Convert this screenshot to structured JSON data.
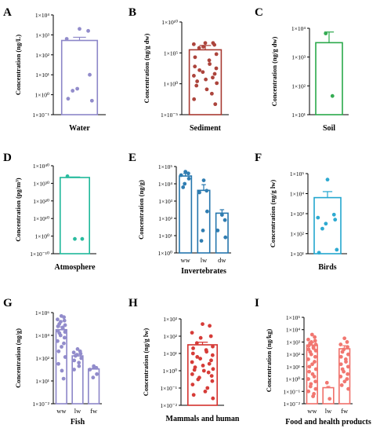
{
  "chart_data": [
    {
      "panel_label": "A",
      "type": "bar",
      "log_scale": true,
      "ylim_exp": [
        -1,
        4
      ],
      "tick_labels": [
        "1×10⁻¹",
        "1×10⁰",
        "1×10¹",
        "1×10²",
        "1×10³",
        "1×10⁴"
      ],
      "ylabel": "Concentration (ng/L)",
      "xlabel": "Water",
      "color": "#8c86c8",
      "bars": [
        {
          "value_exp": 2.72,
          "err_exp": 2.88
        }
      ],
      "points": [
        [
          3.3,
          3.2,
          2.8,
          1.0,
          0.3,
          0.2,
          -0.3,
          -0.2
        ]
      ]
    },
    {
      "panel_label": "B",
      "type": "bar",
      "log_scale": true,
      "ylim_exp": [
        -5,
        10
      ],
      "tick_labels": [
        "1×10⁻⁵",
        "1×10⁰",
        "1×10⁵",
        "1×10¹⁰"
      ],
      "ylabel": "Concentration (ng/g dw)",
      "xlabel": "Sediment",
      "color": "#a83a32",
      "bars": [
        {
          "value_exp": 5.5,
          "err_exp": 6.2
        }
      ],
      "points": [
        [
          6.6,
          6.6,
          6.4,
          6.3,
          6.0,
          5.8,
          4.8,
          4.3,
          3.8,
          3.2,
          2.8,
          2.5,
          2.2,
          1.9,
          1.6,
          1.3,
          1.0,
          0.7,
          0.4,
          0.1,
          -0.3,
          -0.9,
          -1.6,
          -2.5,
          -3.3
        ]
      ]
    },
    {
      "panel_label": "C",
      "type": "bar",
      "log_scale": true,
      "ylim_exp": [
        1,
        4
      ],
      "tick_labels": [
        "1×10¹",
        "1×10²",
        "1×10³",
        "1×10⁴"
      ],
      "ylabel": "Concentration (ng/g dw)",
      "xlabel": "Soil",
      "color": "#2aa84a",
      "bars": [
        {
          "value_exp": 3.5,
          "err_exp": 3.87
        }
      ],
      "points": [
        [
          3.82,
          1.65
        ]
      ]
    },
    {
      "panel_label": "D",
      "type": "bar",
      "log_scale": true,
      "ylim_exp": [
        -10,
        40
      ],
      "tick_labels": [
        "1×10⁻¹⁰",
        "1×10⁰",
        "1×10¹⁰",
        "1×10²⁰",
        "1×10³⁰",
        "1×10⁴⁰"
      ],
      "ylabel": "Concentration (pg/m³)",
      "xlabel": "Atmosphere",
      "color": "#1fb89a",
      "bars": [
        {
          "value_exp": 33.3,
          "err_exp": 33.6
        }
      ],
      "points": [
        [
          34.0,
          -1.6,
          -1.6
        ]
      ]
    },
    {
      "panel_label": "E",
      "type": "bar",
      "log_scale": true,
      "ylim_exp": [
        0,
        5
      ],
      "tick_labels": [
        "1×10⁰",
        "1×10¹",
        "1×10²",
        "1×10³",
        "1×10⁴",
        "1×10⁵"
      ],
      "ylabel": "Concentration (ng/g)",
      "xlabel": "Invertebrates",
      "categories": [
        "ww",
        "lw",
        "dw"
      ],
      "color": "#2576ad",
      "bars": [
        {
          "value_exp": 4.45,
          "err_exp": 4.6
        },
        {
          "value_exp": 3.62,
          "err_exp": 3.95
        },
        {
          "value_exp": 2.3,
          "err_exp": 2.5
        }
      ],
      "points": [
        [
          4.7,
          4.6,
          4.5,
          4.3,
          4.0,
          3.8
        ],
        [
          4.2,
          3.6,
          3.5,
          2.4,
          1.3,
          0.7
        ],
        [
          2.2,
          1.9,
          1.3,
          0.9
        ]
      ]
    },
    {
      "panel_label": "F",
      "type": "bar",
      "log_scale": true,
      "ylim_exp": [
        1,
        5
      ],
      "tick_labels": [
        "1×10¹",
        "1×10²",
        "1×10³",
        "1×10⁴",
        "1×10⁵"
      ],
      "ylabel": "Concentration (ng/g lw)",
      "xlabel": "Birds",
      "color": "#23a6cf",
      "bars": [
        {
          "value_exp": 3.8,
          "err_exp": 4.1
        }
      ],
      "points": [
        [
          4.7,
          2.95,
          2.8,
          2.7,
          2.5,
          2.25,
          1.2,
          1.05
        ]
      ]
    },
    {
      "panel_label": "G",
      "type": "bar",
      "log_scale": true,
      "ylim_exp": [
        -2,
        6
      ],
      "tick_labels": [
        "1×10⁻²",
        "1×10¹",
        "1×10²",
        "1×10⁴",
        "1×10⁶"
      ],
      "ylabel": "Concentration (ng/g)",
      "xlabel": "Fish",
      "categories": [
        "ww",
        "lw",
        "fw"
      ],
      "color": "#8c86c8",
      "bars": [
        {
          "value_exp": 4.5,
          "err_exp": 4.75
        },
        {
          "value_exp": 2.2,
          "err_exp": 2.35
        },
        {
          "value_exp": 1.05,
          "err_exp": 1.15
        }
      ],
      "points": [
        [
          5.7,
          5.6,
          5.4,
          5.3,
          5.2,
          5.0,
          4.9,
          4.8,
          4.7,
          4.6,
          4.4,
          4.3,
          4.2,
          4.0,
          3.8,
          3.5,
          3.3,
          3.0,
          2.6,
          2.1,
          1.5,
          0.9,
          0.2
        ],
        [
          2.8,
          2.6,
          2.5,
          2.4,
          2.3,
          2.2,
          2.0,
          1.8,
          1.6,
          1.3,
          1.0
        ],
        [
          1.3,
          1.15,
          1.0,
          0.6,
          0.3
        ]
      ]
    },
    {
      "panel_label": "H",
      "type": "bar",
      "log_scale": true,
      "ylim_exp": [
        -2,
        3
      ],
      "tick_labels": [
        "1×10⁻²",
        "1×10⁻¹",
        "1×10⁰",
        "1×10¹",
        "1×10²",
        "1×10³"
      ],
      "ylabel": "Concentration (ng/g lw)",
      "xlabel": "Mammals and human",
      "color": "#d4322e",
      "bars": [
        {
          "value_exp": 1.5,
          "err_exp": 1.65
        }
      ],
      "points": [
        [
          2.7,
          2.6,
          2.2,
          2.0,
          1.9,
          1.6,
          1.4,
          1.3,
          1.2,
          1.1,
          1.0,
          0.9,
          0.8,
          0.7,
          0.6,
          0.5,
          0.4,
          0.3,
          0.2,
          0.1,
          0.05,
          0.0,
          -0.1,
          -0.2,
          -0.3,
          -0.4,
          -0.5,
          -0.6,
          -0.8,
          -1.0,
          -1.2,
          -1.4,
          -1.6
        ]
      ]
    },
    {
      "panel_label": "I",
      "type": "bar",
      "log_scale": true,
      "ylim_exp": [
        -2,
        5
      ],
      "tick_labels": [
        "1×10⁻²",
        "1×10⁻¹",
        "1×10⁰",
        "1×10¹",
        "1×10²",
        "1×10³",
        "1×10⁴",
        "1×10⁵"
      ],
      "ylabel": "Concentration (ng/kg)",
      "xlabel": "Food and health products",
      "categories": [
        "ww",
        "lw",
        "fw"
      ],
      "color": "#f0706a",
      "bars": [
        {
          "value_exp": 2.75,
          "err_exp": 2.95
        },
        {
          "value_exp": -0.7,
          "err_exp": -0.6
        },
        {
          "value_exp": 2.45,
          "err_exp": 2.7
        }
      ],
      "points": [
        [
          3.6,
          3.4,
          3.2,
          3.1,
          3.0,
          2.9,
          2.8,
          2.7,
          2.6,
          2.5,
          2.4,
          2.3,
          2.2,
          2.0,
          1.8,
          1.6,
          1.4,
          1.2,
          1.0,
          0.8,
          0.6,
          0.4,
          0.2,
          0.0,
          -0.2,
          -0.4,
          -0.6,
          -0.8,
          -1.0,
          -1.2,
          -1.4
        ],
        [
          -0.3,
          -1.6
        ],
        [
          3.3,
          3.0,
          2.8,
          2.6,
          2.4,
          2.2,
          2.0,
          1.8,
          1.6,
          1.4,
          1.2,
          1.0,
          0.8,
          0.6,
          0.4,
          0.2,
          0.0,
          -0.2,
          -0.5,
          -0.8
        ]
      ]
    }
  ]
}
